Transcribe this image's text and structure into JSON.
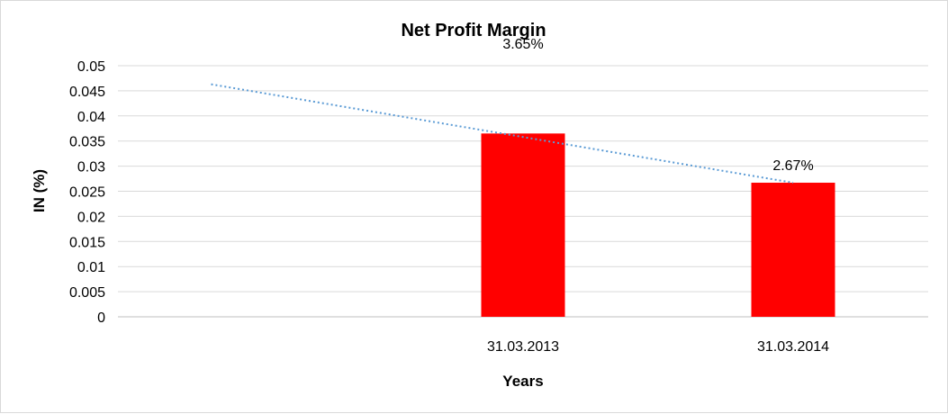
{
  "chart_data": {
    "type": "bar",
    "title": "Net Profit Margin",
    "xlabel": "Years",
    "ylabel": "IN (%)",
    "categories": [
      "",
      "31.03.2013",
      "31.03.2014"
    ],
    "values": [
      null,
      0.0365,
      0.0267
    ],
    "data_labels": [
      "",
      "3.65%",
      "2.67%"
    ],
    "ylim": [
      0,
      0.05
    ],
    "yticks": [
      0,
      0.005,
      0.01,
      0.015,
      0.02,
      0.025,
      0.03,
      0.035,
      0.04,
      0.045,
      0.05
    ],
    "ytick_labels": [
      "0",
      "0.005",
      "0.01",
      "0.015",
      "0.02",
      "0.025",
      "0.03",
      "0.035",
      "0.04",
      "0.045",
      "0.05"
    ],
    "trendline": {
      "type": "linear",
      "style": "dotted",
      "start_value": 0.0463,
      "end_value": 0.0267
    },
    "grid": true,
    "legend": "none",
    "colors": {
      "bar": "#ff0000",
      "trendline": "#5b9bd5",
      "grid": "#d9d9d9"
    }
  }
}
